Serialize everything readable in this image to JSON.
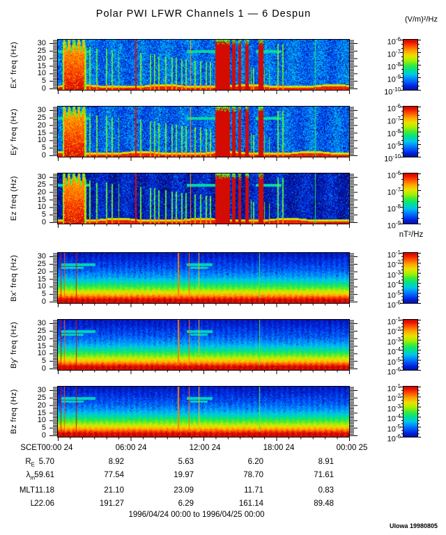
{
  "header": {
    "title": "Polar PWI LFWR Channels 1 — 6 Despun"
  },
  "footer": {
    "range": "1996/04/24 00:00 to 1996/04/25 00:00",
    "credit": "UIowa 19980805"
  },
  "axis": {
    "x_row_label": "SCET",
    "x_tick_labels": [
      "00:00 24",
      "06:00 24",
      "12:00 24",
      "18:00 24",
      "00:00 25"
    ],
    "x_hours": [
      0,
      6,
      12,
      18,
      24
    ],
    "y_ticks": [
      0,
      5,
      10,
      15,
      20,
      25,
      30
    ]
  },
  "ephemeris_rows": [
    {
      "label": "R",
      "sub": "E",
      "values": [
        "5.70",
        "8.92",
        "5.63",
        "6.20",
        "8.91"
      ]
    },
    {
      "label": "λ",
      "sub": "m",
      "values": [
        "59.61",
        "77.54",
        "19.97",
        "78.70",
        "71.61"
      ]
    },
    {
      "label": "MLT",
      "sub": "",
      "values": [
        "11.18",
        "21.10",
        "23.09",
        "11.71",
        "0.83"
      ]
    },
    {
      "label": "L",
      "sub": "",
      "values": [
        "22.06",
        "191.27",
        "6.29",
        "161.14",
        "89.48"
      ]
    }
  ],
  "chart_data": {
    "type": "heatmap",
    "title": "Polar PWI LFWR Channels 1 — 6 Despun",
    "x_label": "SCET hours of 1996/04/24 00:00 to 1996/04/25 00:00",
    "x_range_hours": [
      0,
      24
    ],
    "y_range_hz": [
      0,
      32
    ],
    "grid": false,
    "colormap": "rainbow (blue=low, red=high)",
    "e_colorbar": {
      "unit": "(V/m)²/Hz",
      "base": "10"
    },
    "b_colorbar": {
      "unit": "nT²/Hz",
      "base": "10"
    },
    "panels": [
      {
        "id": "ex",
        "ylabel": "Ex' freq (Hz)",
        "group": "e",
        "bg": 0.17,
        "cb_exponents": [
          "-6",
          "-7",
          "-8",
          "-9",
          "-10"
        ]
      },
      {
        "id": "ey",
        "ylabel": "Ey' freq (Hz)",
        "group": "e",
        "bg": 0.16,
        "cb_exponents": [
          "-6",
          "-7",
          "-8",
          "-9",
          "-10"
        ]
      },
      {
        "id": "ez",
        "ylabel": "Ez freq (Hz)",
        "group": "e",
        "bg": 0.05,
        "cb_exponents": [
          "-6",
          "-7",
          "-8",
          "-9"
        ]
      },
      {
        "id": "bx",
        "ylabel": "Bx' freq (Hz)",
        "group": "b",
        "bg": 0.0,
        "cb_exponents": [
          "-1",
          "-2",
          "-3",
          "-4",
          "-5",
          "-6"
        ]
      },
      {
        "id": "by",
        "ylabel": "By' freq (Hz)",
        "group": "b",
        "bg": 0.0,
        "cb_exponents": [
          "-1",
          "-2",
          "-3",
          "-4",
          "-5",
          "-6"
        ]
      },
      {
        "id": "bz",
        "ylabel": "Bz freq (Hz)",
        "group": "b",
        "bg": 0.0,
        "cb_exponents": [
          "-1",
          "-2",
          "-3",
          "-4",
          "-5",
          "-6"
        ]
      }
    ],
    "e_features": {
      "bursts": [
        [
          0.35,
          2.3
        ]
      ],
      "blobs": [
        [
          12.95,
          14.15
        ],
        [
          14.35,
          14.6
        ],
        [
          14.85,
          15.1
        ],
        [
          15.4,
          15.7
        ],
        [
          16.5,
          16.9
        ]
      ],
      "vlines": [
        {
          "t": 6.4,
          "v": 0.95
        },
        {
          "t": 10.9,
          "v": 0.8
        },
        {
          "t": 21.2,
          "v": 0.5
        }
      ],
      "streaks": [
        2.6,
        3.2,
        4.0,
        4.45,
        5.0,
        6.8,
        7.6,
        7.95,
        8.3,
        8.85,
        9.4,
        9.75,
        10.2,
        10.55,
        11.3,
        11.75,
        12.2,
        12.55,
        15.9,
        16.1,
        17.0,
        17.4,
        18.1,
        18.5
      ],
      "hlines": [
        {
          "f": 25,
          "t": [
            0.0,
            2.6
          ]
        },
        {
          "f": 25,
          "t": [
            10.6,
            13.0
          ]
        },
        {
          "f": 25,
          "t": [
            16.3,
            18.4
          ]
        }
      ],
      "baseline": true
    },
    "b_features": {
      "gradient_anchors_hz_to_level": [
        [
          0,
          0.965
        ],
        [
          2,
          0.96
        ],
        [
          5,
          0.77
        ],
        [
          9,
          0.58
        ],
        [
          13,
          0.44
        ],
        [
          17,
          0.33
        ],
        [
          22,
          0.25
        ],
        [
          33,
          0.14
        ]
      ],
      "vlines": [
        {
          "t": 0.25,
          "v": 0.95
        },
        {
          "t": 0.5,
          "v": 0.86
        },
        {
          "t": 1.5,
          "v": 0.95
        },
        {
          "t": 9.9,
          "v": 0.82
        },
        {
          "t": 10.8,
          "v": 0.84
        },
        {
          "t": 11.6,
          "v": 0.74
        },
        {
          "t": 16.6,
          "v": 0.55
        }
      ],
      "hlines": [
        {
          "f": 25,
          "t": [
            0.25,
            3.1
          ]
        },
        {
          "f": 23,
          "t": [
            0.25,
            2.1
          ]
        },
        {
          "f": 25,
          "t": [
            10.6,
            12.7
          ]
        },
        {
          "f": 23,
          "t": [
            10.9,
            12.3
          ]
        }
      ]
    }
  }
}
